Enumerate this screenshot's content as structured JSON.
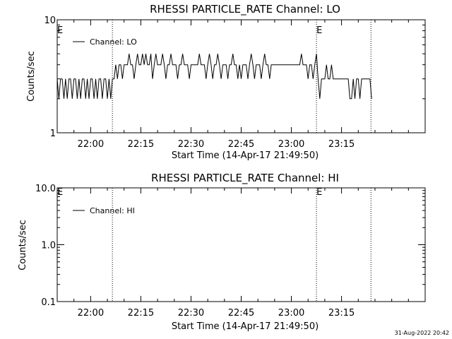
{
  "footer": {
    "timestamp": "31-Aug-2022 20:42"
  },
  "chart_data": [
    {
      "type": "line",
      "title": "RHESSI PARTICLE_RATE Channel: LO",
      "xlabel": "Start Time (14-Apr-17 21:49:50)",
      "ylabel": "Counts/sec",
      "yscale": "log",
      "ylim": [
        1,
        10
      ],
      "yticks": [
        {
          "v": 1,
          "label": "1"
        },
        {
          "v": 10,
          "label": "10"
        }
      ],
      "xlim_minutes": [
        -10,
        100
      ],
      "xticks": [
        {
          "v": 0,
          "label": "22:00"
        },
        {
          "v": 15,
          "label": "22:15"
        },
        {
          "v": 30,
          "label": "22:30"
        },
        {
          "v": 45,
          "label": "22:45"
        },
        {
          "v": 60,
          "label": "23:00"
        },
        {
          "v": 75,
          "label": "23:15"
        }
      ],
      "markers": [
        {
          "x": 6.5,
          "label": ""
        },
        {
          "x": 67.5,
          "label": "E"
        },
        {
          "x": 83.8,
          "label": ""
        }
      ],
      "edge_labels": {
        "left": "E"
      },
      "legend": {
        "entries": [
          "Channel: LO"
        ],
        "position": "top-left"
      },
      "series": [
        {
          "name": "Channel: LO",
          "values_time_count": [
            [
              -10,
              3
            ],
            [
              -9.5,
              2
            ],
            [
              -9,
              3
            ],
            [
              -8.5,
              3
            ],
            [
              -8,
              2
            ],
            [
              -7.5,
              3
            ],
            [
              -7,
              2
            ],
            [
              -6.5,
              3
            ],
            [
              -6,
              3
            ],
            [
              -5.5,
              2
            ],
            [
              -5,
              3
            ],
            [
              -4.5,
              3
            ],
            [
              -4,
              2
            ],
            [
              -3.5,
              3
            ],
            [
              -3,
              2
            ],
            [
              -2.5,
              3
            ],
            [
              -2,
              3
            ],
            [
              -1.5,
              2
            ],
            [
              -1,
              3
            ],
            [
              -0.5,
              2
            ],
            [
              0,
              3
            ],
            [
              0.5,
              3
            ],
            [
              1,
              2
            ],
            [
              1.5,
              3
            ],
            [
              2,
              2
            ],
            [
              2.5,
              3
            ],
            [
              3,
              3
            ],
            [
              3.5,
              2
            ],
            [
              4,
              3
            ],
            [
              4.5,
              3
            ],
            [
              5,
              2
            ],
            [
              5.5,
              3
            ],
            [
              6,
              2
            ],
            [
              6.5,
              3
            ],
            [
              7,
              3
            ],
            [
              7.5,
              4
            ],
            [
              8,
              3
            ],
            [
              8.5,
              4
            ],
            [
              9,
              4
            ],
            [
              9.5,
              3
            ],
            [
              10,
              4
            ],
            [
              10.5,
              4
            ],
            [
              11,
              4
            ],
            [
              11.5,
              5
            ],
            [
              12,
              4
            ],
            [
              12.5,
              4
            ],
            [
              13,
              3
            ],
            [
              13.5,
              4
            ],
            [
              14,
              5
            ],
            [
              14.5,
              4
            ],
            [
              15,
              4
            ],
            [
              15.5,
              5
            ],
            [
              16,
              4
            ],
            [
              16.5,
              5
            ],
            [
              17,
              4
            ],
            [
              17.5,
              4
            ],
            [
              18,
              5
            ],
            [
              18.5,
              3
            ],
            [
              19,
              4
            ],
            [
              19.5,
              5
            ],
            [
              20,
              4
            ],
            [
              20.5,
              4
            ],
            [
              21,
              4
            ],
            [
              21.5,
              5
            ],
            [
              22,
              4
            ],
            [
              22.5,
              3
            ],
            [
              23,
              4
            ],
            [
              23.5,
              4
            ],
            [
              24,
              5
            ],
            [
              24.5,
              4
            ],
            [
              25,
              4
            ],
            [
              25.5,
              4
            ],
            [
              26,
              3
            ],
            [
              26.5,
              4
            ],
            [
              27,
              4
            ],
            [
              27.5,
              5
            ],
            [
              28,
              4
            ],
            [
              28.5,
              4
            ],
            [
              29,
              4
            ],
            [
              29.5,
              3
            ],
            [
              30,
              4
            ],
            [
              30.5,
              4
            ],
            [
              31,
              4
            ],
            [
              31.5,
              4
            ],
            [
              32,
              4
            ],
            [
              32.5,
              5
            ],
            [
              33,
              4
            ],
            [
              33.5,
              4
            ],
            [
              34,
              4
            ],
            [
              34.5,
              3
            ],
            [
              35,
              4
            ],
            [
              35.5,
              5
            ],
            [
              36,
              4
            ],
            [
              36.5,
              3
            ],
            [
              37,
              4
            ],
            [
              37.5,
              4
            ],
            [
              38,
              5
            ],
            [
              38.5,
              4
            ],
            [
              39,
              3
            ],
            [
              39.5,
              4
            ],
            [
              40,
              4
            ],
            [
              40.5,
              4
            ],
            [
              41,
              3
            ],
            [
              41.5,
              4
            ],
            [
              42,
              4
            ],
            [
              42.5,
              5
            ],
            [
              43,
              4
            ],
            [
              43.5,
              4
            ],
            [
              44,
              3
            ],
            [
              44.5,
              4
            ],
            [
              45,
              3
            ],
            [
              45.5,
              4
            ],
            [
              46,
              4
            ],
            [
              46.5,
              4
            ],
            [
              47,
              3
            ],
            [
              47.5,
              4
            ],
            [
              48,
              5
            ],
            [
              48.5,
              4
            ],
            [
              49,
              3
            ],
            [
              49.5,
              4
            ],
            [
              50,
              4
            ],
            [
              50.5,
              4
            ],
            [
              51,
              3
            ],
            [
              51.5,
              4
            ],
            [
              52,
              5
            ],
            [
              52.5,
              4
            ],
            [
              53,
              4
            ],
            [
              53.5,
              3
            ],
            [
              54,
              4
            ],
            [
              54.5,
              4
            ],
            [
              55,
              4
            ],
            [
              55.5,
              4
            ],
            [
              56,
              4
            ],
            [
              56.5,
              4
            ],
            [
              57,
              4
            ],
            [
              57.5,
              4
            ],
            [
              58,
              4
            ],
            [
              58.5,
              4
            ],
            [
              59,
              4
            ],
            [
              59.5,
              4
            ],
            [
              60,
              4
            ],
            [
              60.5,
              4
            ],
            [
              61,
              4
            ],
            [
              61.5,
              4
            ],
            [
              62,
              4
            ],
            [
              62.5,
              4
            ],
            [
              63,
              5
            ],
            [
              63.5,
              4
            ],
            [
              64,
              4
            ],
            [
              64.5,
              4
            ],
            [
              65,
              3
            ],
            [
              65.5,
              4
            ],
            [
              66,
              4
            ],
            [
              66.5,
              3
            ],
            [
              67,
              4
            ],
            [
              67.5,
              5
            ],
            [
              68,
              3
            ],
            [
              68.5,
              2
            ],
            [
              69,
              3
            ],
            [
              69.5,
              3
            ],
            [
              70,
              3
            ],
            [
              70.5,
              4
            ],
            [
              71,
              3
            ],
            [
              71.5,
              3
            ],
            [
              72,
              4
            ],
            [
              72.5,
              3
            ],
            [
              73,
              3
            ],
            [
              73.5,
              3
            ],
            [
              74,
              3
            ],
            [
              74.5,
              3
            ],
            [
              75,
              3
            ],
            [
              75.5,
              3
            ],
            [
              76,
              3
            ],
            [
              76.5,
              3
            ],
            [
              77,
              3
            ],
            [
              77.5,
              2
            ],
            [
              78,
              2
            ],
            [
              78.5,
              3
            ],
            [
              79,
              2
            ],
            [
              79.5,
              3
            ],
            [
              80,
              3
            ],
            [
              80.5,
              2
            ],
            [
              81,
              3
            ],
            [
              81.5,
              3
            ],
            [
              82,
              3
            ],
            [
              82.5,
              3
            ],
            [
              83,
              3
            ],
            [
              83.5,
              3
            ],
            [
              84,
              2
            ]
          ]
        }
      ]
    },
    {
      "type": "line",
      "title": "RHESSI PARTICLE_RATE Channel: HI",
      "xlabel": "Start Time (14-Apr-17 21:49:50)",
      "ylabel": "Counts/sec",
      "yscale": "log",
      "ylim": [
        0.1,
        10
      ],
      "yticks": [
        {
          "v": 0.1,
          "label": "0.1"
        },
        {
          "v": 1,
          "label": "1.0"
        },
        {
          "v": 10,
          "label": "10.0"
        }
      ],
      "xlim_minutes": [
        -10,
        100
      ],
      "xticks": [
        {
          "v": 0,
          "label": "22:00"
        },
        {
          "v": 15,
          "label": "22:15"
        },
        {
          "v": 30,
          "label": "22:30"
        },
        {
          "v": 45,
          "label": "22:45"
        },
        {
          "v": 60,
          "label": "23:00"
        },
        {
          "v": 75,
          "label": "23:15"
        }
      ],
      "markers": [
        {
          "x": 6.5,
          "label": ""
        },
        {
          "x": 67.5,
          "label": "E"
        },
        {
          "x": 83.8,
          "label": ""
        }
      ],
      "edge_labels": {
        "left": "E"
      },
      "legend": {
        "entries": [
          "Channel: HI"
        ],
        "position": "top-left"
      },
      "series": [
        {
          "name": "Channel: HI",
          "values_time_count": []
        }
      ]
    }
  ]
}
